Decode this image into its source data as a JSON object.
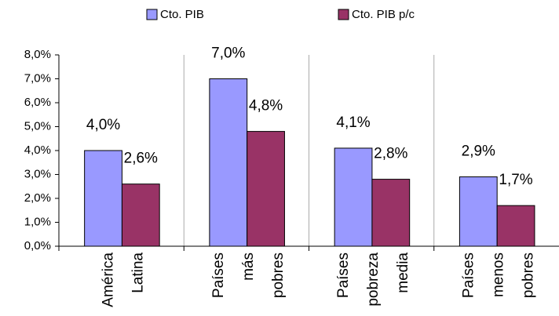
{
  "chart_data": {
    "type": "bar",
    "categories": [
      "América Latina",
      "Países más pobres",
      "Países pobreza media",
      "Países menos pobres"
    ],
    "series": [
      {
        "name": "Cto. PIB",
        "color": "#9999ff",
        "values": [
          4.0,
          7.0,
          4.1,
          2.9
        ],
        "value_labels": [
          "4,0%",
          "7,0%",
          "4,1%",
          "2,9%"
        ]
      },
      {
        "name": "Cto. PIB p/c",
        "color": "#993366",
        "values": [
          2.6,
          4.8,
          2.8,
          1.7
        ],
        "value_labels": [
          "2,6%",
          "4,8%",
          "2,8%",
          "1,7%"
        ]
      }
    ],
    "ylim": [
      0,
      8
    ],
    "yticks": [
      {
        "value": 0,
        "label": "0,0%"
      },
      {
        "value": 1,
        "label": "1,0%"
      },
      {
        "value": 2,
        "label": "2,0%"
      },
      {
        "value": 3,
        "label": "3,0%"
      },
      {
        "value": 4,
        "label": "4,0%"
      },
      {
        "value": 5,
        "label": "5,0%"
      },
      {
        "value": 6,
        "label": "6,0%"
      },
      {
        "value": 7,
        "label": "7,0%"
      },
      {
        "value": 8,
        "label": "8,0%"
      }
    ],
    "legend": "top"
  }
}
